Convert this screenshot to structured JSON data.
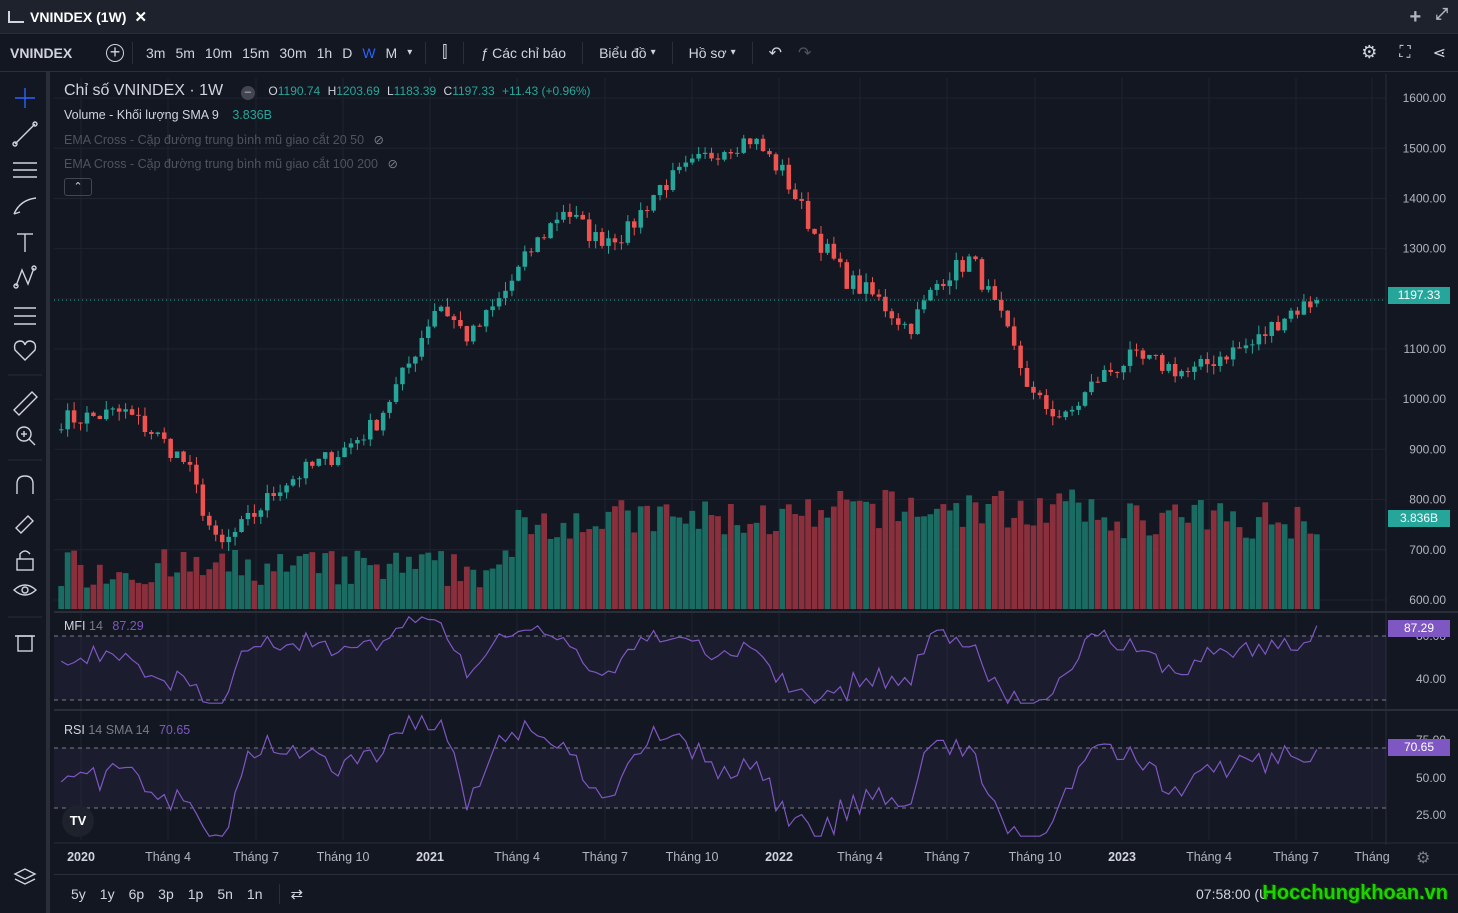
{
  "window": {
    "title": "VNINDEX (1W)"
  },
  "toolbar": {
    "symbol": "VNINDEX",
    "timeframes": [
      "3m",
      "5m",
      "10m",
      "15m",
      "30m",
      "1h",
      "D",
      "W",
      "M"
    ],
    "active_timeframe": "W",
    "indicators_label": "Các chỉ báo",
    "chart_label": "Biểu đồ",
    "profile_label": "Hồ sơ"
  },
  "legend": {
    "title": "Chỉ số VNINDEX · 1W",
    "o_label": "O",
    "o": "1190.74",
    "h_label": "H",
    "h": "1203.69",
    "l_label": "L",
    "l": "1183.39",
    "c_label": "C",
    "c": "1197.33",
    "change": "+11.43 (+0.96%)",
    "volume_label": "Volume - Khối lượng SMA 9",
    "volume_value": "3.836B",
    "ema1": "EMA Cross - Cặp đường trung bình mũ giao cắt 20 50",
    "ema2": "EMA Cross - Cặp đường trung bình mũ giao cắt 100 200"
  },
  "mfi": {
    "label": "MFI",
    "params": "14",
    "value": "87.29"
  },
  "rsi": {
    "label": "RSI",
    "params": "14 SMA 14",
    "value": "70.65"
  },
  "price_axis": [
    "1600.00",
    "1500.00",
    "1400.00",
    "1300.00",
    "1100.00",
    "1000.00",
    "900.00",
    "800.00",
    "700.00",
    "600.00"
  ],
  "price_tag": "1197.33",
  "volume_tag": "3.836B",
  "mfi_axis": [
    "80.00",
    "40.00"
  ],
  "rsi_axis": [
    "75.00",
    "50.00",
    "25.00"
  ],
  "time_axis": [
    "2020",
    "Tháng 4",
    "Tháng 7",
    "Tháng 10",
    "2021",
    "Tháng 4",
    "Tháng 7",
    "Tháng 10",
    "2022",
    "Tháng 4",
    "Tháng 7",
    "Tháng 10",
    "2023",
    "Tháng 4",
    "Tháng 7",
    "Tháng"
  ],
  "ranges": [
    "5y",
    "1y",
    "6p",
    "3p",
    "1p",
    "5n",
    "1n"
  ],
  "clock": "07:58:00 (U",
  "watermark": "Hocchungkhoan.vn",
  "colors": {
    "up": "#26a69a",
    "down": "#ef5350",
    "vol_up": "#1a6b62",
    "vol_down": "#8a2f3c",
    "osc": "#7e57c2"
  },
  "chart_data": {
    "type": "candlestick",
    "title": "Chỉ số VNINDEX · 1W",
    "x": [
      "2020",
      "Tháng 4",
      "Tháng 7",
      "Tháng 10",
      "2021",
      "Tháng 4",
      "Tháng 7",
      "Tháng 10",
      "2022",
      "Tháng 4",
      "Tháng 7",
      "Tháng 10",
      "2023",
      "Tháng 4",
      "Tháng 7"
    ],
    "price_anchors": [
      960,
      965,
      975,
      930,
      870,
      700,
      760,
      830,
      865,
      900,
      950,
      1060,
      1195,
      1120,
      1200,
      1300,
      1380,
      1320,
      1330,
      1420,
      1460,
      1500,
      1520,
      1450,
      1330,
      1240,
      1200,
      1140,
      1240,
      1280,
      1150,
      1000,
      960,
      1040,
      1080,
      1070,
      1050,
      1090,
      1110,
      1170,
      1197
    ],
    "last": {
      "open": 1190.74,
      "high": 1203.69,
      "low": 1183.39,
      "close": 1197.33
    },
    "ylim": [
      580,
      1640
    ],
    "volume_last": "3.836B",
    "mfi_last": 87.29,
    "rsi_last": 70.65
  }
}
